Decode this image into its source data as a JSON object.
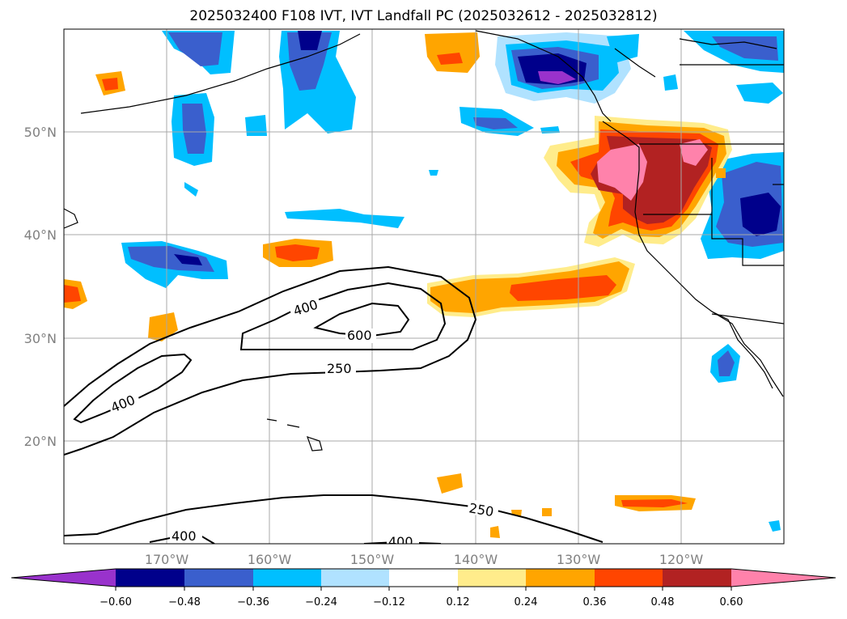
{
  "title": "2025032400 F108 IVT, IVT Landfall PC (2025032612 - 2025032812)",
  "map": {
    "lat_labels": [
      "50°N",
      "40°N",
      "30°N",
      "20°N"
    ],
    "lon_labels": [
      "170°W",
      "160°W",
      "150°W",
      "140°W",
      "130°W",
      "120°W"
    ]
  },
  "contour_labels": [
    "400",
    "600",
    "250",
    "400",
    "250",
    "400",
    "400"
  ],
  "colorbar": {
    "ticks": [
      "−0.60",
      "−0.48",
      "−0.36",
      "−0.24",
      "−0.12",
      "0.12",
      "0.24",
      "0.36",
      "0.48",
      "0.60"
    ],
    "colors": [
      "#9932cc",
      "#00008b",
      "#3a5fcd",
      "#00bfff",
      "#b0e2ff",
      "#ffffff",
      "#ffec8b",
      "#ffa500",
      "#ff4500",
      "#b22222",
      "#ff82ab"
    ]
  }
}
